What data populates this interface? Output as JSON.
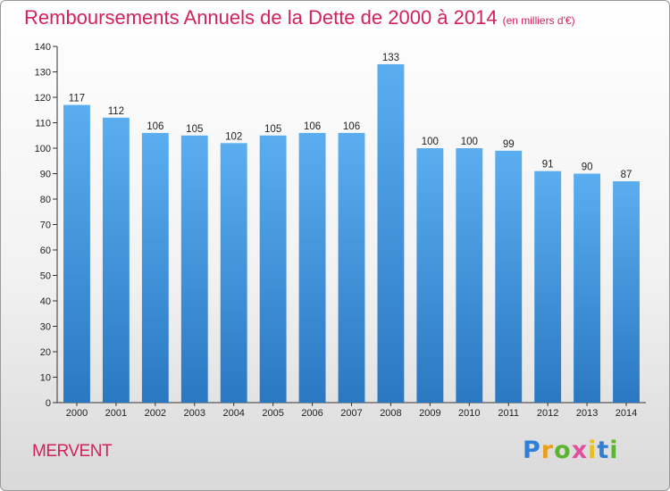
{
  "header": {
    "title": "Remboursements Annuels de la Dette de 2000 à 2014",
    "unit": "(en milliers d'€)"
  },
  "footer": {
    "place": "MERVENT",
    "brand": "Proxiti"
  },
  "colors": {
    "title": "#d2225a",
    "bar_top": "#5aaef0",
    "bar_bottom": "#2a78c2"
  },
  "chart_data": {
    "type": "bar",
    "categories": [
      "2000",
      "2001",
      "2002",
      "2003",
      "2004",
      "2005",
      "2006",
      "2007",
      "2008",
      "2009",
      "2010",
      "2011",
      "2012",
      "2013",
      "2014"
    ],
    "values": [
      117,
      112,
      106,
      105,
      102,
      105,
      106,
      106,
      133,
      100,
      100,
      99,
      91,
      90,
      87
    ],
    "title": "Remboursements Annuels de la Dette de 2000 à 2014",
    "ylim": [
      0,
      140
    ],
    "yticks": [
      0,
      10,
      20,
      30,
      40,
      50,
      60,
      70,
      80,
      90,
      100,
      110,
      120,
      130,
      140
    ],
    "grid": false,
    "data_labels": true
  }
}
